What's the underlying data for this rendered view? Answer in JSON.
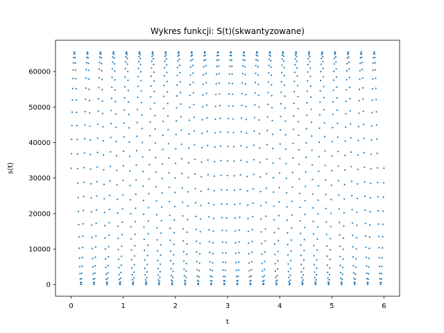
{
  "chart_data": {
    "type": "scatter",
    "title": "Wykres funkcji: S(t)(skwantyzowane)",
    "xlabel": "t",
    "ylabel": "s(t)",
    "xlim": [
      -0.3,
      6.3
    ],
    "ylim": [
      -3277,
      68812
    ],
    "xticks": [
      0,
      1,
      2,
      3,
      4,
      5,
      6
    ],
    "yticks": [
      0,
      10000,
      20000,
      30000,
      40000,
      50000,
      60000
    ],
    "xtick_labels": [
      "0",
      "1",
      "2",
      "3",
      "4",
      "5",
      "6"
    ],
    "ytick_labels": [
      "0",
      "10000",
      "20000",
      "30000",
      "40000",
      "50000",
      "60000"
    ],
    "grid": false,
    "series": [
      {
        "marker": "dot",
        "color": "#1f77b4",
        "function": {
          "form": "quantized sine: round(32767.5 + 32767.5 * sin(2*pi*f*t))",
          "frequency": 4,
          "t_start": 0,
          "t_end": 6,
          "samples": 1200
        }
      }
    ]
  }
}
